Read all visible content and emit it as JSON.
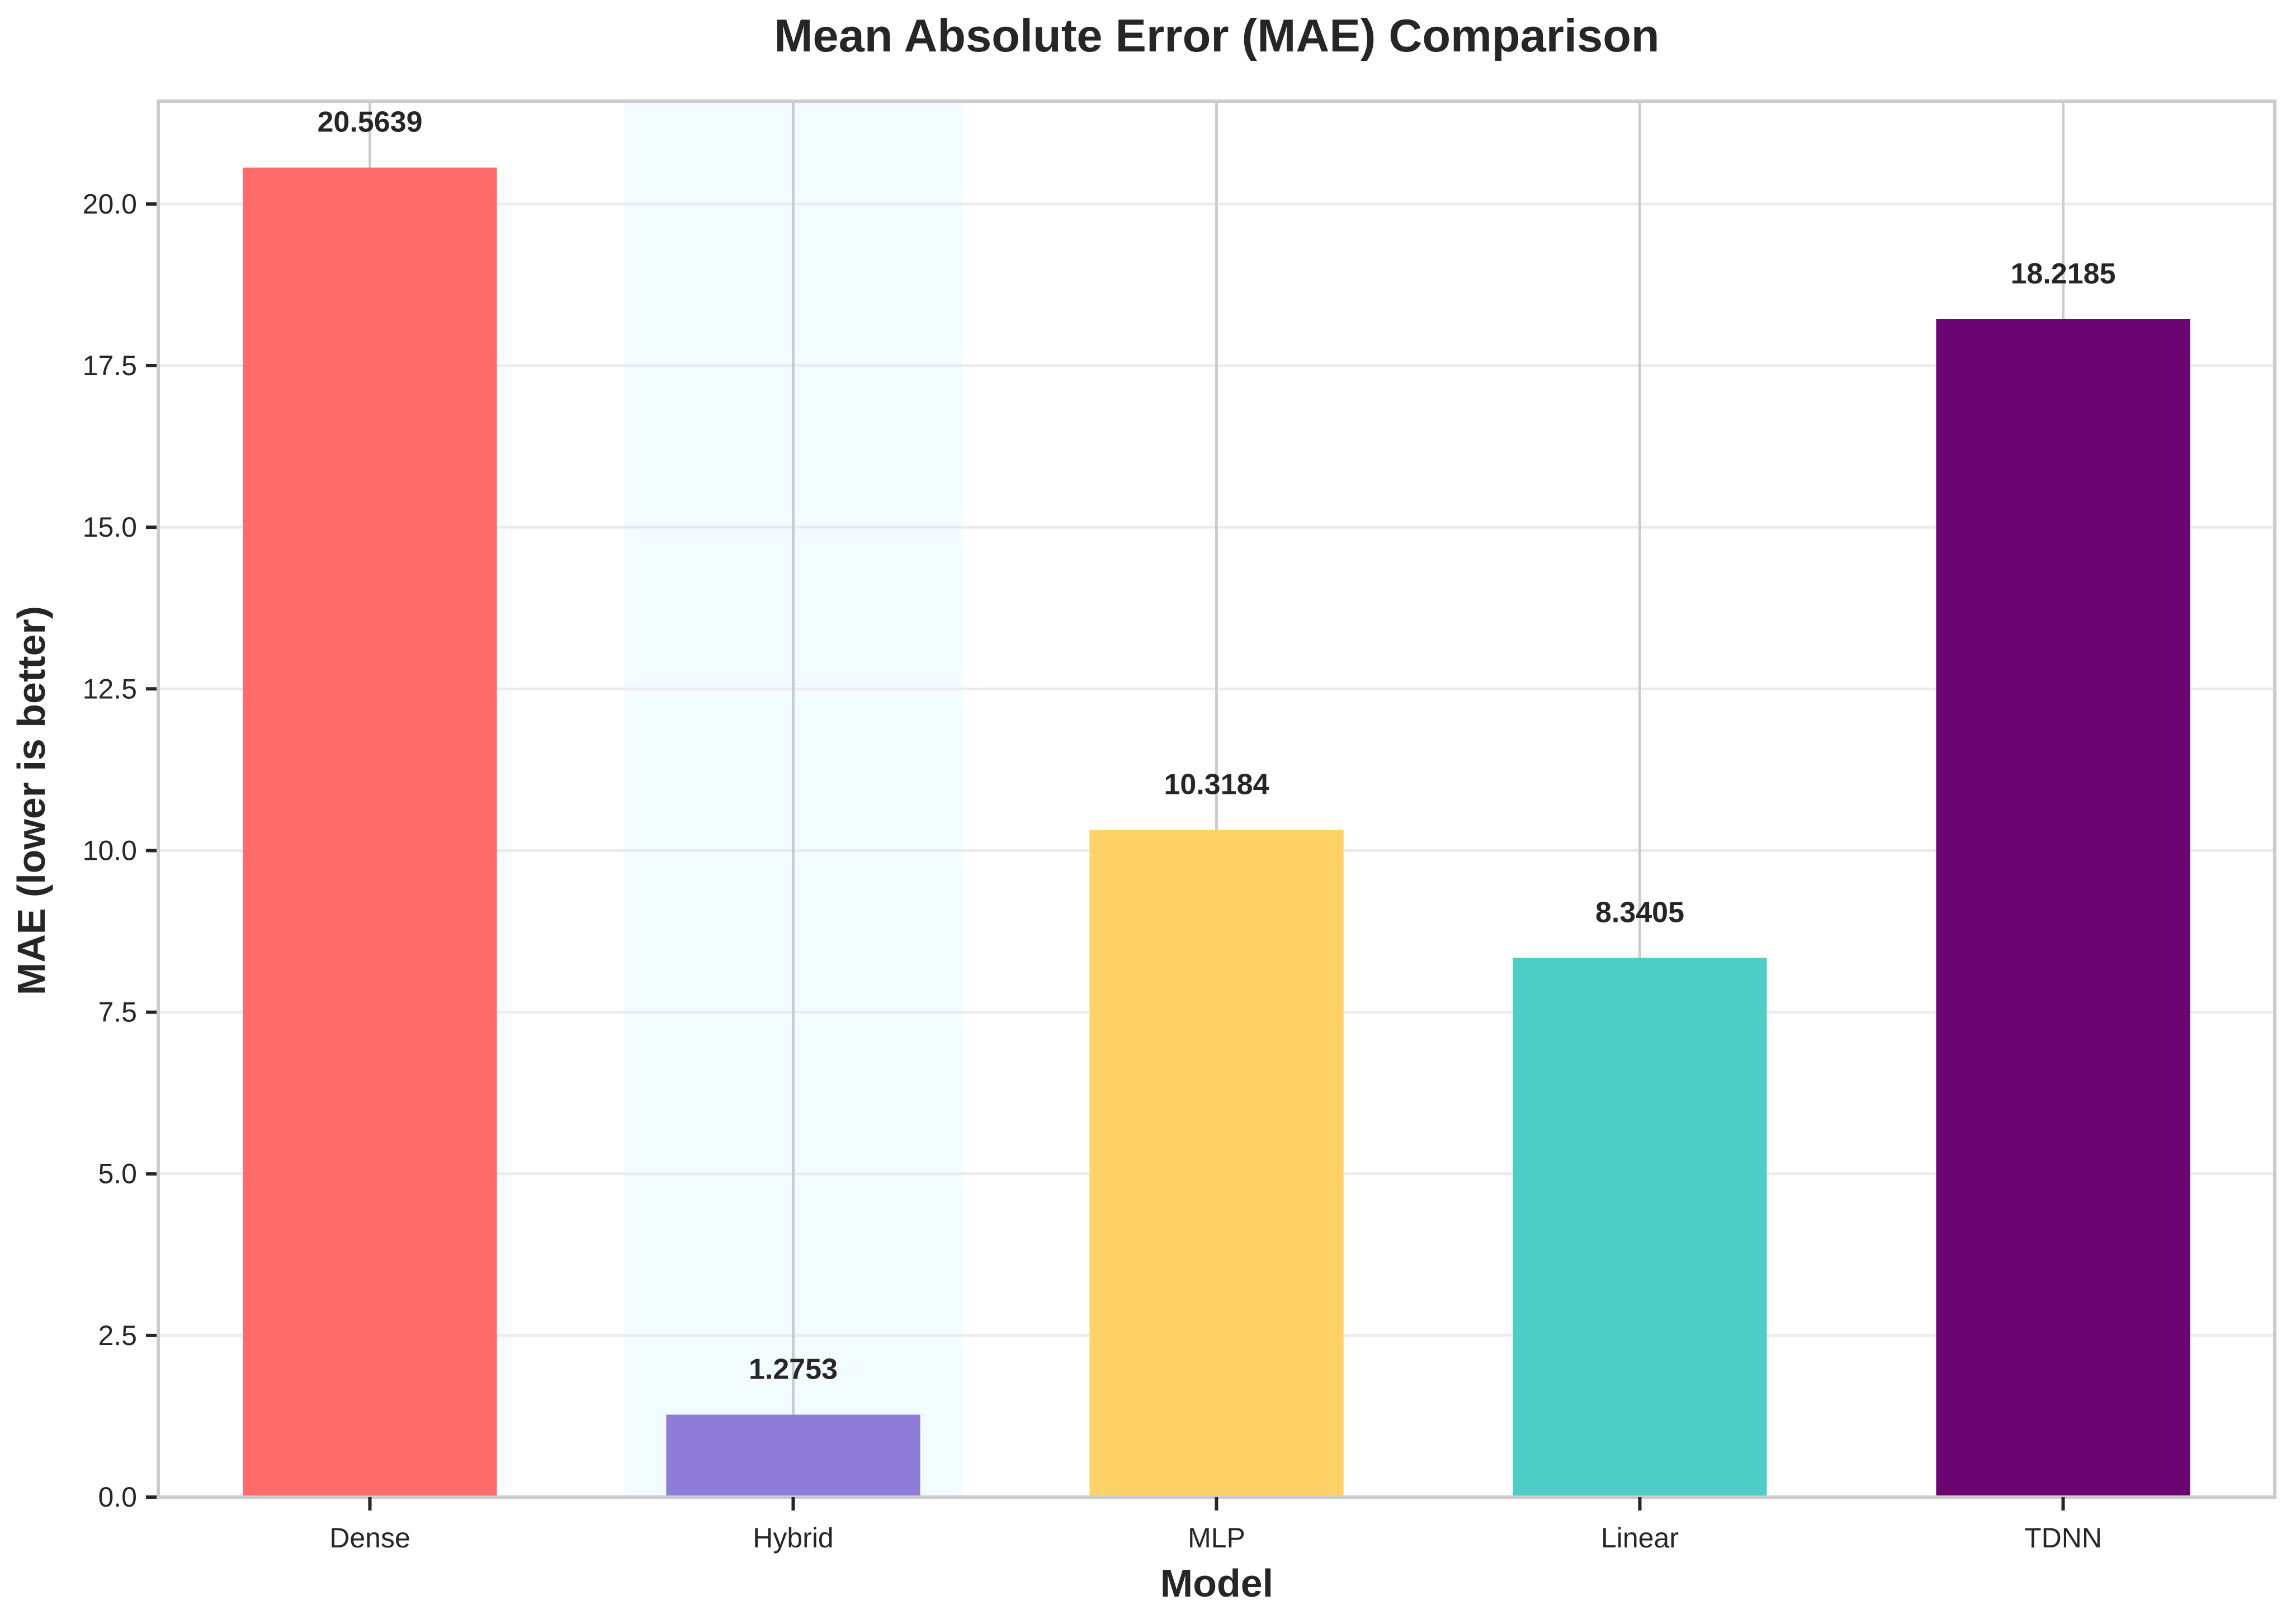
{
  "chart_data": {
    "type": "bar",
    "title": "Mean Absolute Error (MAE) Comparison",
    "xlabel": "Model",
    "ylabel": "MAE (lower is better)",
    "categories": [
      "Dense",
      "Hybrid",
      "MLP",
      "Linear",
      "TDNN"
    ],
    "values": [
      20.5639,
      1.2753,
      10.3184,
      8.3405,
      18.2185
    ],
    "value_labels": [
      "20.5639",
      "1.2753",
      "10.3184",
      "8.3405",
      "18.2185"
    ],
    "colors": [
      "#FF6B6B",
      "#8E7CD9",
      "#FFD166",
      "#4ECDC4",
      "#6A0572"
    ],
    "highlighted_category": "Hybrid",
    "highlight_color": "#F2FCFE",
    "ylim": [
      0,
      21.59
    ],
    "yticks": [
      0.0,
      2.5,
      5.0,
      7.5,
      10.0,
      12.5,
      15.0,
      17.5,
      20.0
    ],
    "ytick_labels": [
      "0.0",
      "2.5",
      "5.0",
      "7.5",
      "10.0",
      "12.5",
      "15.0",
      "17.5",
      "20.0"
    ],
    "grid": true
  }
}
